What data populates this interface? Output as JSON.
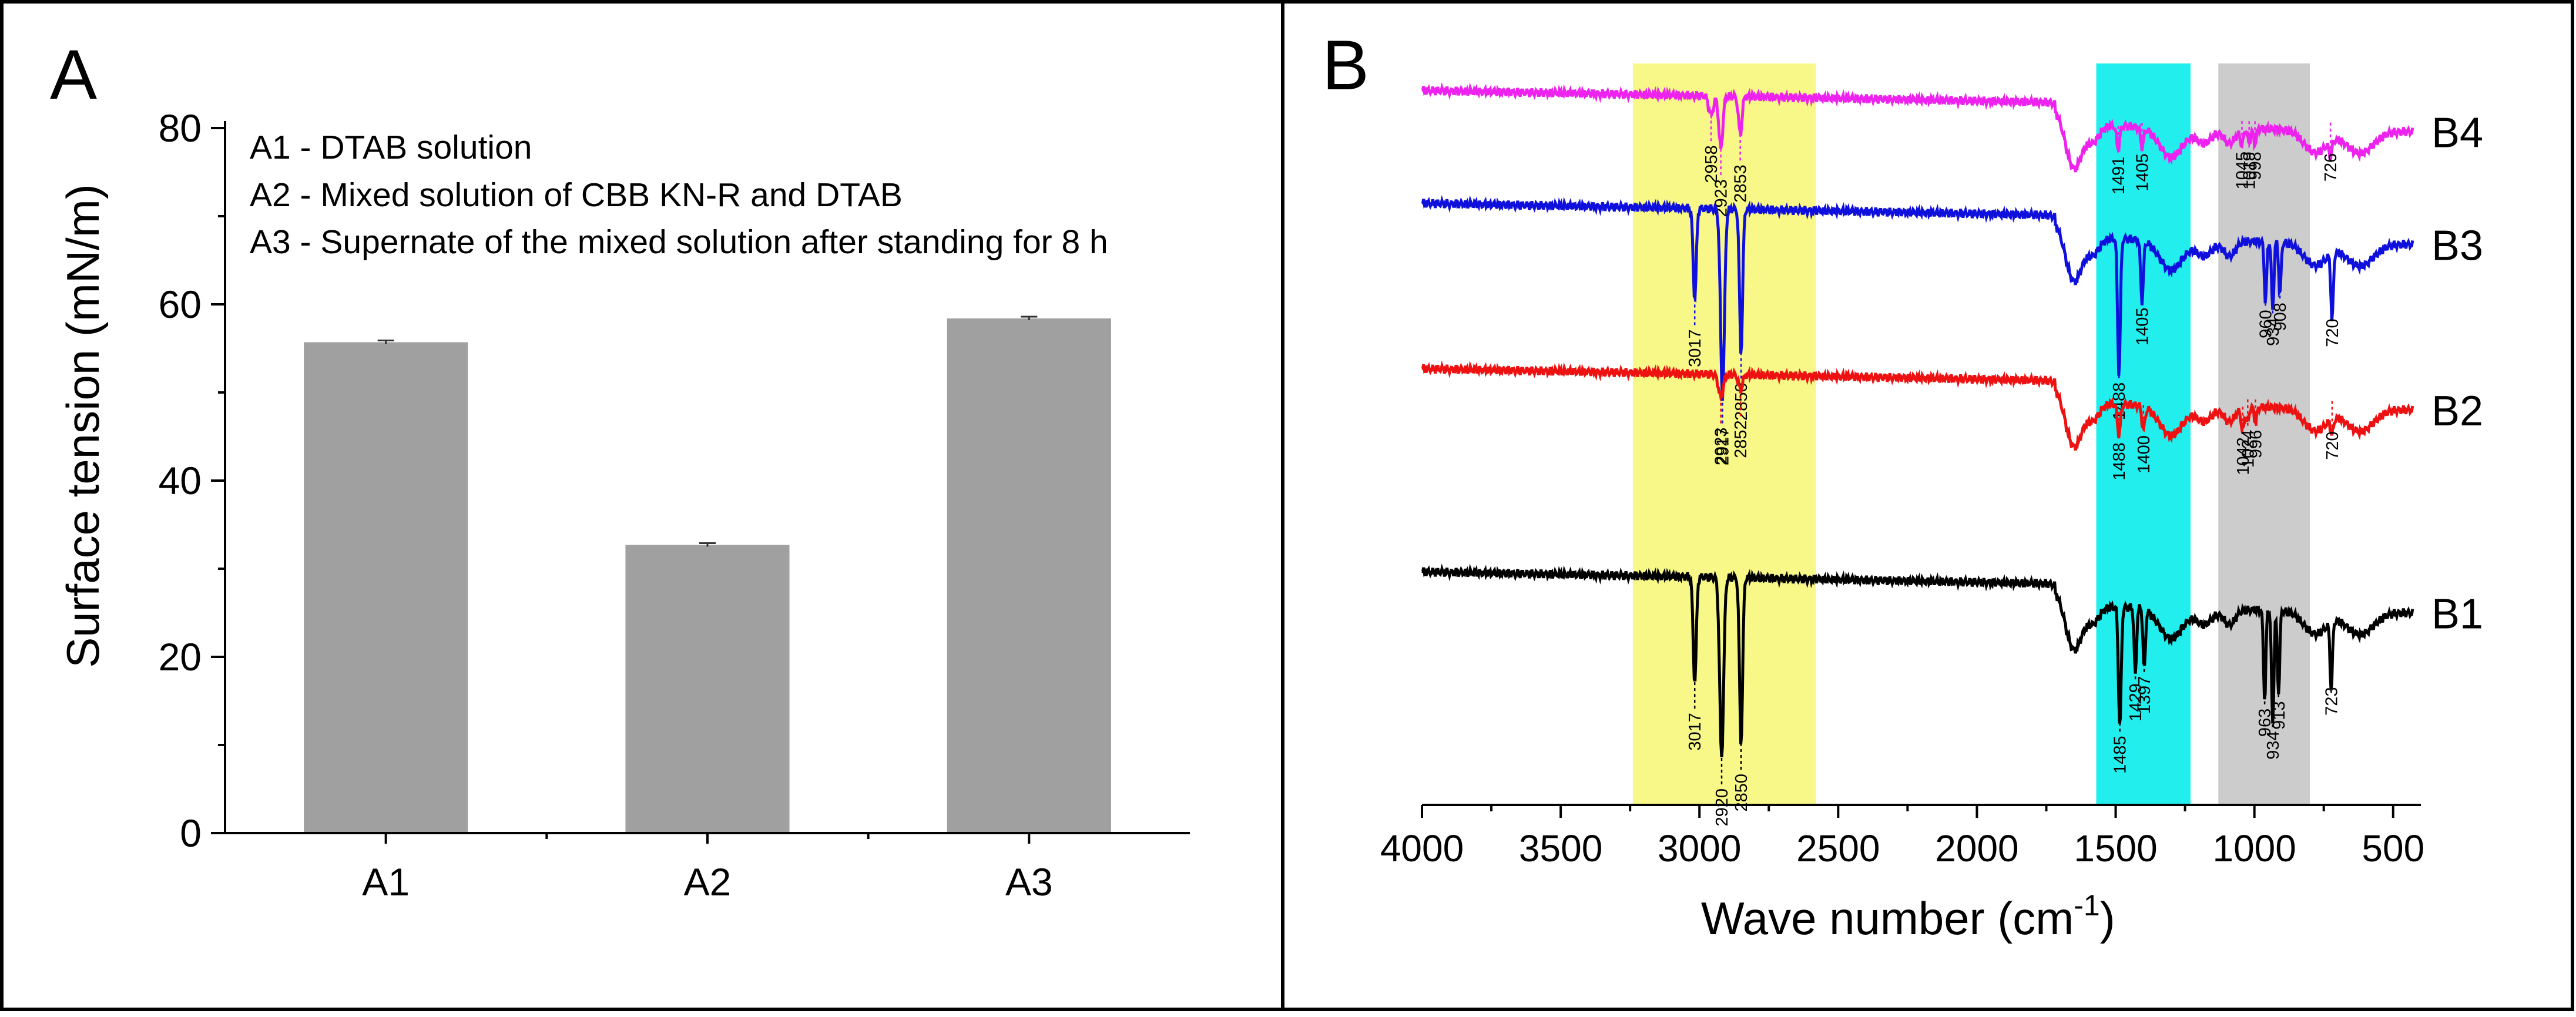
{
  "chart_data": [
    {
      "panel": "A",
      "type": "bar",
      "panel_label": "A",
      "title": "",
      "xlabel": "",
      "ylabel": "Surface tension (mN/m)",
      "categories": [
        "A1",
        "A2",
        "A3"
      ],
      "values": [
        55.7,
        32.7,
        58.4
      ],
      "errors": [
        0.2,
        0.2,
        0.2
      ],
      "ylim": [
        0,
        80
      ],
      "yticks": [
        "0",
        "20",
        "40",
        "60",
        "80"
      ],
      "grid": false,
      "bar_color": "#a0a0a0",
      "legend_placement": "top-left",
      "legend": [
        "A1 - DTAB solution",
        "A2 - Mixed solution of CBB KN-R and DTAB",
        "A3 - Supernate of the mixed solution after standing for 8 h"
      ]
    },
    {
      "panel": "B",
      "type": "line",
      "panel_label": "B",
      "title": "",
      "xlabel_main": "Wave number (cm",
      "xlabel_sup": "-1",
      "xlabel_close": ")",
      "ylabel": "",
      "xlim": [
        4000,
        400
      ],
      "xticks": [
        "4000",
        "3500",
        "3000",
        "2500",
        "2000",
        "1500",
        "1000",
        "500"
      ],
      "xtick_values": [
        4000,
        3500,
        3000,
        2500,
        2000,
        1500,
        1000,
        500
      ],
      "y_units": "arbitrary (stacked transmittance)",
      "ylim": [
        0,
        100
      ],
      "highlight_bands": [
        {
          "from": 3240,
          "to": 2580,
          "color": "#f8f888"
        },
        {
          "from": 1570,
          "to": 1230,
          "color": "#22eeee"
        },
        {
          "from": 1130,
          "to": 800,
          "color": "#cccccc"
        }
      ],
      "series": [
        {
          "name": "B4",
          "color": "#ee22ee",
          "baseline": 95,
          "peaks": [
            {
              "x": 2958,
              "depth": 2.5,
              "w": 12
            },
            {
              "x": 2923,
              "depth": 7,
              "w": 10
            },
            {
              "x": 2853,
              "depth": 5,
              "w": 9
            },
            {
              "x": 1491,
              "depth": 3,
              "w": 8
            },
            {
              "x": 1405,
              "depth": 2.5,
              "w": 8
            },
            {
              "x": 1045,
              "depth": 2,
              "w": 8
            },
            {
              "x": 1019,
              "depth": 2,
              "w": 7
            },
            {
              "x": 998,
              "depth": 2,
              "w": 7
            },
            {
              "x": 726,
              "depth": 2,
              "w": 7
            }
          ],
          "labels": [
            "2958",
            "2923",
            "2853",
            "1491",
            "1405",
            "1045",
            "1019",
            "998",
            "726"
          ]
        },
        {
          "name": "B3",
          "color": "#1010dd",
          "baseline": 80,
          "peaks": [
            {
              "x": 3017,
              "depth": 12,
              "w": 8
            },
            {
              "x": 2917,
              "depth": 25,
              "w": 10
            },
            {
              "x": 2850,
              "depth": 19,
              "w": 8
            },
            {
              "x": 1488,
              "depth": 18,
              "w": 7
            },
            {
              "x": 1405,
              "depth": 8,
              "w": 7
            },
            {
              "x": 960,
              "depth": 8,
              "w": 6
            },
            {
              "x": 934,
              "depth": 9,
              "w": 6
            },
            {
              "x": 908,
              "depth": 7,
              "w": 6
            },
            {
              "x": 720,
              "depth": 9,
              "w": 6
            }
          ],
          "labels": [
            "3017",
            "2917",
            "2850",
            "1488",
            "1405",
            "960",
            "934",
            "908",
            "720"
          ]
        },
        {
          "name": "B2",
          "color": "#ee1111",
          "baseline": 58,
          "peaks": [
            {
              "x": 2923,
              "depth": 3,
              "w": 12
            },
            {
              "x": 2852,
              "depth": 2,
              "w": 10
            },
            {
              "x": 1488,
              "depth": 4,
              "w": 8
            },
            {
              "x": 1400,
              "depth": 3,
              "w": 8
            },
            {
              "x": 1042,
              "depth": 3,
              "w": 8
            },
            {
              "x": 1024,
              "depth": 2,
              "w": 7
            },
            {
              "x": 996,
              "depth": 2,
              "w": 7
            },
            {
              "x": 720,
              "depth": 2,
              "w": 7
            }
          ],
          "labels": [
            "2923",
            "2852",
            "1488",
            "1400",
            "1042",
            "1024",
            "996",
            "720"
          ]
        },
        {
          "name": "B1",
          "color": "#000000",
          "baseline": 31,
          "peaks": [
            {
              "x": 3017,
              "depth": 14,
              "w": 8
            },
            {
              "x": 2920,
              "depth": 24,
              "w": 10
            },
            {
              "x": 2850,
              "depth": 22,
              "w": 8
            },
            {
              "x": 1485,
              "depth": 16,
              "w": 7
            },
            {
              "x": 1429,
              "depth": 9,
              "w": 6
            },
            {
              "x": 1397,
              "depth": 8,
              "w": 6
            },
            {
              "x": 963,
              "depth": 12,
              "w": 6
            },
            {
              "x": 934,
              "depth": 15,
              "w": 6
            },
            {
              "x": 913,
              "depth": 11,
              "w": 6
            },
            {
              "x": 723,
              "depth": 9,
              "w": 6
            }
          ],
          "labels": [
            "3017",
            "2920",
            "2850",
            "1485",
            "1429",
            "1397",
            "963",
            "934",
            "913",
            "723"
          ]
        }
      ]
    }
  ]
}
